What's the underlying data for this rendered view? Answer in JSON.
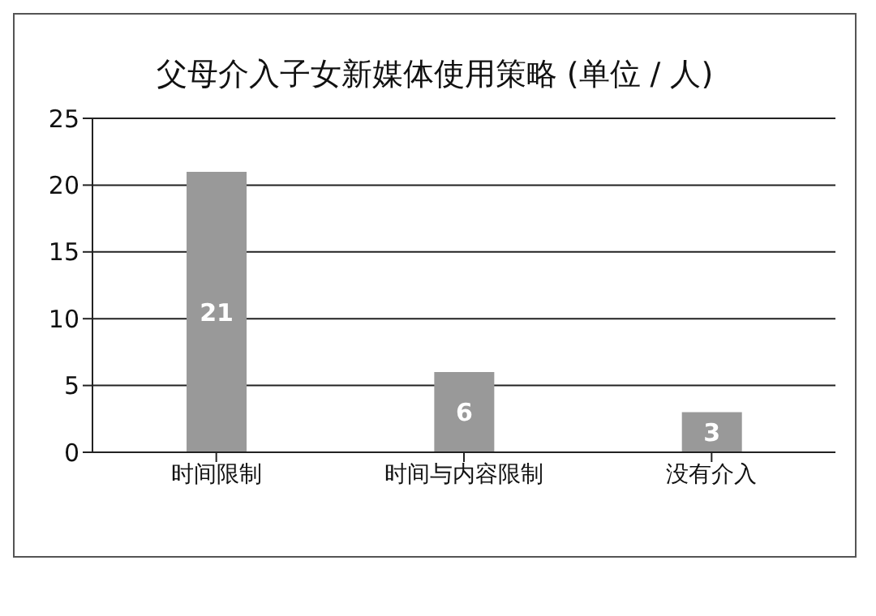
{
  "chart_data": {
    "type": "bar",
    "title": "父母介入子女新媒体使用策略 (单位 / 人)",
    "categories": [
      "时间限制",
      "时间与内容限制",
      "没有介入"
    ],
    "values": [
      21,
      6,
      3
    ],
    "color": "#999999",
    "ylim": [
      0,
      25
    ],
    "yticks": [
      0,
      5,
      10,
      15,
      20,
      25
    ],
    "grid": "y",
    "data_labels": true
  }
}
